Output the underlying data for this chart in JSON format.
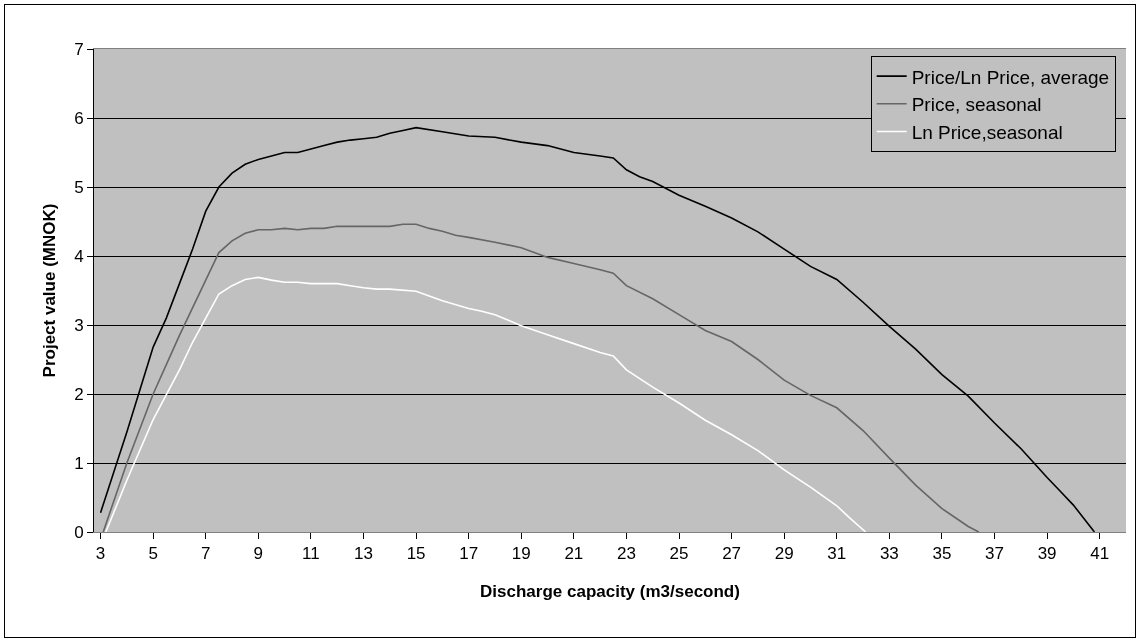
{
  "chart_data": {
    "type": "line",
    "xlabel": "Discharge capacity (m3/second)",
    "ylabel": "Project value (MNOK)",
    "xlim": [
      2.75,
      42
    ],
    "xticks": [
      3,
      5,
      7,
      9,
      11,
      13,
      15,
      17,
      19,
      21,
      23,
      25,
      27,
      29,
      31,
      33,
      35,
      37,
      39,
      41
    ],
    "ylim": [
      0,
      7
    ],
    "yticks": [
      0,
      1,
      2,
      3,
      4,
      5,
      6,
      7
    ],
    "grid": "y",
    "legend": "top right",
    "line_style": "solid",
    "marker": "none",
    "series": [
      {
        "name": "Price/Ln Price, average",
        "color": "#000000",
        "x": [
          3,
          4,
          5,
          5.5,
          6,
          6.5,
          7,
          7.5,
          8,
          8.5,
          9,
          9.5,
          10,
          10.5,
          11,
          11.5,
          12,
          12.5,
          13,
          13.5,
          14,
          14.5,
          15,
          16,
          17,
          18,
          19,
          20,
          21,
          22,
          22.5,
          23,
          23.5,
          24,
          25,
          26,
          27,
          28,
          29,
          30,
          31,
          32,
          33,
          34,
          35,
          36,
          37,
          38,
          39,
          39.5,
          40,
          40.8
        ],
        "values": [
          0.28,
          1.45,
          2.68,
          3.1,
          3.6,
          4.1,
          4.65,
          5.0,
          5.2,
          5.33,
          5.4,
          5.45,
          5.5,
          5.5,
          5.55,
          5.6,
          5.65,
          5.68,
          5.7,
          5.72,
          5.78,
          5.82,
          5.86,
          5.8,
          5.74,
          5.72,
          5.65,
          5.6,
          5.5,
          5.45,
          5.42,
          5.25,
          5.15,
          5.08,
          4.88,
          4.72,
          4.55,
          4.35,
          4.1,
          3.85,
          3.66,
          3.33,
          2.98,
          2.65,
          2.28,
          1.97,
          1.58,
          1.21,
          0.79,
          0.59,
          0.39,
          0
        ]
      },
      {
        "name": "Price, seasonal",
        "color": "#666666",
        "x": [
          3.1,
          4,
          5,
          6,
          7,
          7.5,
          8,
          8.5,
          9,
          9.5,
          10,
          10.5,
          11,
          11.5,
          12,
          13,
          14,
          14.5,
          15,
          15.5,
          16,
          16.5,
          17,
          18,
          19,
          20,
          21,
          22,
          22.5,
          23,
          24,
          25,
          26,
          27,
          28,
          29,
          30,
          31,
          32,
          33,
          34,
          35,
          36,
          36.4
        ],
        "values": [
          0,
          1.0,
          2.0,
          2.85,
          3.65,
          4.05,
          4.22,
          4.33,
          4.38,
          4.38,
          4.4,
          4.38,
          4.4,
          4.4,
          4.43,
          4.43,
          4.43,
          4.46,
          4.46,
          4.4,
          4.36,
          4.3,
          4.27,
          4.2,
          4.12,
          3.98,
          3.89,
          3.8,
          3.75,
          3.57,
          3.38,
          3.15,
          2.92,
          2.76,
          2.5,
          2.2,
          1.98,
          1.8,
          1.47,
          1.07,
          0.68,
          0.34,
          0.08,
          0
        ]
      },
      {
        "name": "Ln Price,seasonal",
        "color": "#ffffff",
        "x": [
          3.2,
          4,
          5,
          6,
          6.5,
          7,
          7.5,
          8,
          8.5,
          9,
          9.5,
          10,
          10.5,
          11,
          12,
          12.5,
          13,
          13.5,
          14,
          15,
          15.5,
          16,
          17,
          17.5,
          18,
          19,
          20,
          21,
          22,
          22.5,
          23,
          24,
          25,
          26,
          27,
          28,
          29,
          30,
          31,
          31.5,
          32.1
        ],
        "values": [
          0,
          0.75,
          1.63,
          2.35,
          2.75,
          3.1,
          3.45,
          3.57,
          3.66,
          3.69,
          3.65,
          3.62,
          3.62,
          3.6,
          3.6,
          3.57,
          3.54,
          3.52,
          3.52,
          3.49,
          3.42,
          3.35,
          3.24,
          3.2,
          3.15,
          2.99,
          2.86,
          2.73,
          2.6,
          2.55,
          2.35,
          2.1,
          1.87,
          1.62,
          1.41,
          1.18,
          0.9,
          0.65,
          0.38,
          0.2,
          0
        ]
      }
    ]
  }
}
